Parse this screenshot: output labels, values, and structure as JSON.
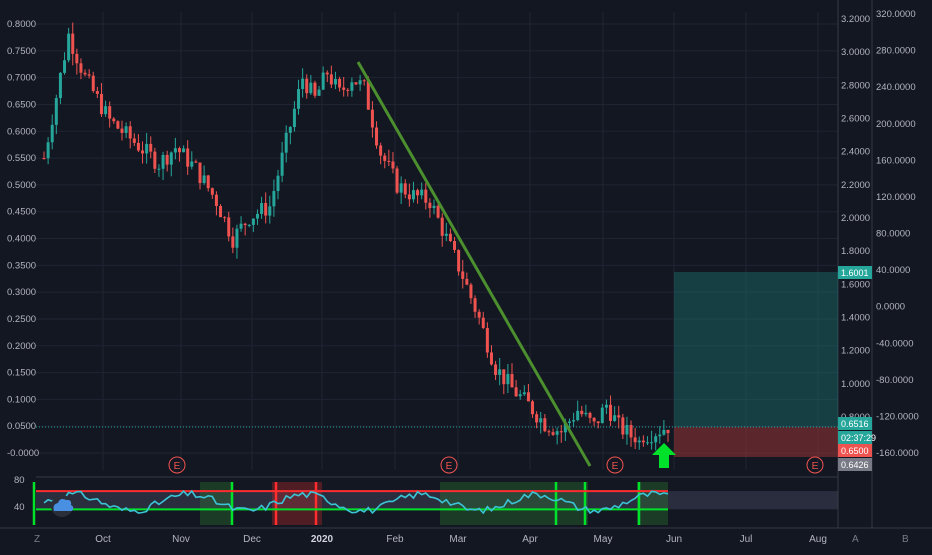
{
  "chart_data": {
    "type": "candlestick",
    "title": "",
    "x_labels": [
      "Oct",
      "Nov",
      "Dec",
      "2020",
      "Feb",
      "Mar",
      "Apr",
      "May",
      "Jun",
      "Jul",
      "Aug"
    ],
    "price_axis_left": {
      "ticks": [
        "0.8000",
        "0.7500",
        "0.7000",
        "0.6500",
        "0.6000",
        "0.5500",
        "0.5000",
        "0.4500",
        "0.4000",
        "0.3500",
        "0.3000",
        "0.2500",
        "0.2000",
        "0.1500",
        "0.1000",
        "0.0500",
        "-0.0000"
      ],
      "range": [
        -0.0,
        0.8
      ]
    },
    "price_axis_right": {
      "ticks": [
        "3.2000",
        "3.0000",
        "2.8000",
        "2.6000",
        "2.4000",
        "2.2000",
        "2.0000",
        "1.8000",
        "1.6000",
        "1.4000",
        "1.2000",
        "1.0000",
        "0.8000"
      ]
    },
    "pct_axis": {
      "ticks": [
        "320.0000",
        "280.0000",
        "240.0000",
        "200.0000",
        "160.0000",
        "120.0000",
        "80.0000",
        "40.0000",
        "0.0000",
        "-40.0000",
        "-80.0000",
        "-120.0000",
        "-160.0000"
      ]
    },
    "price_tags": [
      {
        "text": "1.6001",
        "color": "#26a69a"
      },
      {
        "text": "0.6516",
        "color": "#26a69a"
      },
      {
        "text": "02:37:29",
        "color": "#26a69a"
      },
      {
        "text": "0.6500",
        "color": "#ef5350"
      },
      {
        "text": "0.6426",
        "color": "#787b86"
      }
    ],
    "earnings_markers": [
      "E",
      "E",
      "E",
      "E"
    ],
    "oscillator": {
      "ticks": [
        "80",
        "40"
      ],
      "upper_band": 70,
      "lower_band": 30
    },
    "series": [
      {
        "name": "",
        "color_up": "#26a69a",
        "color_down": "#ef5350",
        "keypoints": [
          [
            0,
            0.55
          ],
          [
            6,
            0.78
          ],
          [
            10,
            0.7
          ],
          [
            16,
            0.62
          ],
          [
            22,
            0.58
          ],
          [
            28,
            0.54
          ],
          [
            32,
            0.57
          ],
          [
            37,
            0.53
          ],
          [
            42,
            0.47
          ],
          [
            46,
            0.4
          ],
          [
            50,
            0.44
          ],
          [
            55,
            0.46
          ],
          [
            60,
            0.61
          ],
          [
            63,
            0.7
          ],
          [
            66,
            0.66
          ],
          [
            69,
            0.71
          ],
          [
            72,
            0.67
          ],
          [
            75,
            0.7
          ],
          [
            78,
            0.68
          ],
          [
            82,
            0.56
          ],
          [
            86,
            0.5
          ],
          [
            90,
            0.48
          ],
          [
            94,
            0.47
          ],
          [
            98,
            0.4
          ],
          [
            102,
            0.33
          ],
          [
            106,
            0.25
          ],
          [
            110,
            0.16
          ],
          [
            114,
            0.12
          ],
          [
            118,
            0.09
          ],
          [
            122,
            0.055
          ],
          [
            126,
            0.04
          ],
          [
            130,
            0.08
          ],
          [
            134,
            0.05
          ],
          [
            137,
            0.09
          ],
          [
            140,
            0.05
          ],
          [
            145,
            0.02
          ],
          [
            149,
            0.04
          ],
          [
            152,
            0.05
          ]
        ]
      }
    ]
  },
  "brand": {
    "logo_icon": "cloud-icon"
  },
  "colors": {
    "background": "#131722",
    "up": "#26a69a",
    "down": "#ef5350",
    "trendline": "#4c8f2e",
    "arrow": "#00e12a"
  },
  "bottom_bar": {
    "left_label": "Z",
    "right_label_a": "A",
    "right_label_b": "B"
  }
}
